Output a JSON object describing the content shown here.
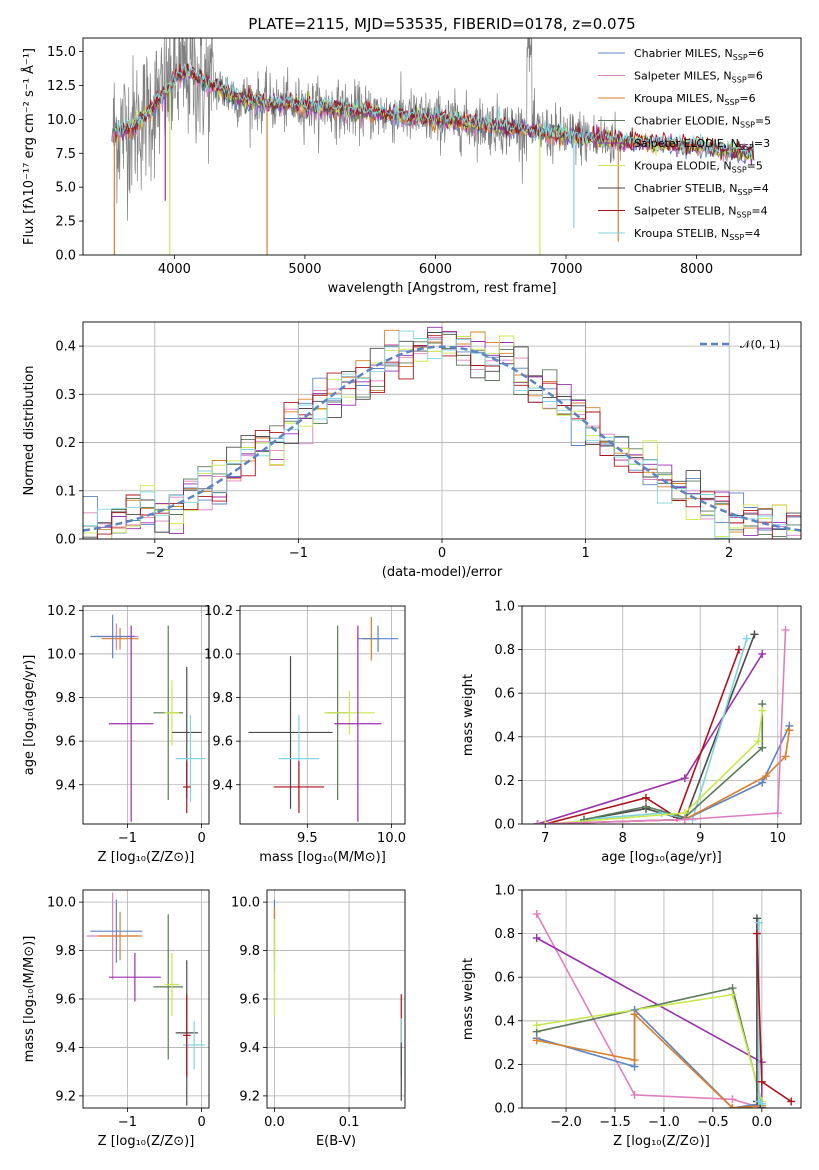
{
  "chart_data": [
    {
      "id": "spectrum",
      "type": "line",
      "title": "PLATE=2115, MJD=53535, FIBERID=0178, z=0.075",
      "xlabel": "wavelength [Angstrom, rest frame]",
      "ylabel": "Flux [fλ10⁻¹⁷ erg cm⁻² s⁻¹ Å⁻¹]",
      "xlim": [
        3300,
        8800
      ],
      "ylim": [
        0,
        16
      ],
      "xticks": [
        4000,
        5000,
        6000,
        7000,
        8000
      ],
      "xtick_labels": [
        "4000",
        "5000",
        "6000",
        "7000",
        "8000"
      ],
      "yticks": [
        0,
        2.5,
        5,
        7.5,
        10,
        12.5,
        15
      ],
      "ytick_labels": [
        "0.0",
        "2.5",
        "5.0",
        "7.5",
        "10.0",
        "12.5",
        "15.0"
      ],
      "grid": false,
      "legend_position": "top-right",
      "legend": [
        {
          "label": "Chabrier MILES, N",
          "sub": "SSP",
          "suffix": "=6",
          "color": "#5b84c4"
        },
        {
          "label": "Salpeter MILES, N",
          "sub": "SSP",
          "suffix": "=6",
          "color": "#e07fbf"
        },
        {
          "label": "Kroupa MILES, N",
          "sub": "SSP",
          "suffix": "=6",
          "color": "#d9802b"
        },
        {
          "label": "Chabrier ELODIE, N",
          "sub": "SSP",
          "suffix": "=5",
          "color": "#5a7a5a"
        },
        {
          "label": "Salpeter ELODIE, N",
          "sub": "SSP",
          "suffix": "=3",
          "color": "#9b2fae"
        },
        {
          "label": "Kroupa ELODIE, N",
          "sub": "SSP",
          "suffix": "=5",
          "color": "#c9e84e"
        },
        {
          "label": "Chabrier STELIB, N",
          "sub": "SSP",
          "suffix": "=4",
          "color": "#4a4a4a"
        },
        {
          "label": "Salpeter STELIB, N",
          "sub": "SSP",
          "suffix": "=4",
          "color": "#b0101a"
        },
        {
          "label": "Kroupa STELIB, N",
          "sub": "SSP",
          "suffix": "=4",
          "color": "#7fd6e0"
        }
      ],
      "data_color": "#808080",
      "spectrum_profile": {
        "x": [
          3500,
          3700,
          3900,
          4000,
          4100,
          4300,
          4500,
          4700,
          5000,
          5500,
          6000,
          6500,
          7000,
          7500,
          8000,
          8400
        ],
        "y": [
          9.0,
          9.5,
          11.5,
          13.0,
          13.5,
          12.5,
          11.5,
          11.2,
          11.0,
          10.5,
          10.0,
          9.5,
          8.8,
          8.3,
          8.0,
          7.5
        ]
      }
    },
    {
      "id": "residuals",
      "type": "step",
      "xlabel": "(data-model)/error",
      "ylabel": "Normed distribution",
      "xlim": [
        -2.5,
        2.5
      ],
      "ylim": [
        0,
        0.45
      ],
      "xticks": [
        -2,
        -1,
        0,
        1,
        2
      ],
      "xtick_labels": [
        "−2",
        "−1",
        "0",
        "1",
        "2"
      ],
      "yticks": [
        0,
        0.1,
        0.2,
        0.3,
        0.4
      ],
      "ytick_labels": [
        "0.0",
        "0.1",
        "0.2",
        "0.3",
        "0.4"
      ],
      "grid": true,
      "legend_position": "top-right",
      "legend": [
        {
          "label": "𝒩(0, 1)",
          "color": "#5b84c4",
          "dashed": true
        }
      ],
      "bin_width": 0.1
    },
    {
      "id": "age-vs-z",
      "type": "errorbar",
      "xlabel": "Z [log₁₀(Z/Z⊙)]",
      "ylabel": "age  [log₁₀(age/yr)]",
      "xlim": [
        -1.6,
        0.1
      ],
      "ylim": [
        9.22,
        10.22
      ],
      "xticks": [
        -1,
        0
      ],
      "xtick_labels": [
        "−1",
        "0"
      ],
      "yticks": [
        9.4,
        9.6,
        9.8,
        10.0,
        10.2
      ],
      "ytick_labels": [
        "9.4",
        "9.6",
        "9.8",
        "10.0",
        "10.2"
      ],
      "grid": true,
      "points": [
        {
          "x": -1.15,
          "xerr": 0.3,
          "y": 10.08,
          "yerr": 0.06,
          "color": "#e07fbf"
        },
        {
          "x": -1.1,
          "xerr": 0.25,
          "y": 10.07,
          "yerr": 0.05,
          "color": "#d9802b"
        },
        {
          "x": -1.2,
          "xerr": 0.3,
          "y": 10.08,
          "yerr": 0.1,
          "color": "#5b84c4"
        },
        {
          "x": -0.95,
          "xerr": 0.3,
          "y": 9.68,
          "yerr": 0.45,
          "color": "#9b2fae"
        },
        {
          "x": -0.45,
          "xerr": 0.2,
          "y": 9.73,
          "yerr": 0.4,
          "color": "#5a7a5a"
        },
        {
          "x": -0.4,
          "xerr": 0.1,
          "y": 9.73,
          "yerr": 0.15,
          "color": "#c9e84e"
        },
        {
          "x": -0.2,
          "xerr": 0.2,
          "y": 9.64,
          "yerr": 0.3,
          "color": "#4a4a4a"
        },
        {
          "x": -0.15,
          "xerr": 0.2,
          "y": 9.52,
          "yerr": 0.2,
          "color": "#7fd6e0"
        },
        {
          "x": -0.2,
          "xerr": 0.05,
          "y": 9.39,
          "yerr": 0.12,
          "color": "#b0101a"
        }
      ]
    },
    {
      "id": "age-vs-mass",
      "type": "errorbar",
      "xlabel": "mass [log₁₀(M/M⊙)]",
      "ylabel": "",
      "xlim": [
        9.1,
        10.08
      ],
      "ylim": [
        9.22,
        10.22
      ],
      "xticks": [
        9.5,
        10.0
      ],
      "xtick_labels": [
        "9.5",
        "10.0"
      ],
      "yticks": [
        9.4,
        9.6,
        9.8,
        10.0,
        10.2
      ],
      "ytick_labels": [
        "9.4",
        "9.6",
        "9.8",
        "10.0",
        "10.2"
      ],
      "grid": true,
      "points": [
        {
          "x": 9.88,
          "xerr": 0.05,
          "y": 10.07,
          "yerr": 0.1,
          "color": "#d9802b"
        },
        {
          "x": 9.92,
          "xerr": 0.12,
          "y": 10.07,
          "yerr": 0.06,
          "color": "#5b84c4"
        },
        {
          "x": 9.68,
          "xerr": 0.06,
          "y": 9.73,
          "yerr": 0.4,
          "color": "#5a7a5a"
        },
        {
          "x": 9.75,
          "xerr": 0.15,
          "y": 9.73,
          "yerr": 0.1,
          "color": "#c9e84e"
        },
        {
          "x": 9.8,
          "xerr": 0.14,
          "y": 9.68,
          "yerr": 0.45,
          "color": "#9b2fae"
        },
        {
          "x": 9.4,
          "xerr": 0.25,
          "y": 9.64,
          "yerr": 0.35,
          "color": "#4a4a4a"
        },
        {
          "x": 9.45,
          "xerr": 0.12,
          "y": 9.52,
          "yerr": 0.2,
          "color": "#7fd6e0"
        },
        {
          "x": 9.45,
          "xerr": 0.15,
          "y": 9.39,
          "yerr": 0.12,
          "color": "#b0101a"
        }
      ]
    },
    {
      "id": "weight-vs-age",
      "type": "line",
      "xlabel": "age  [log₁₀(age/yr)]",
      "ylabel": "mass weight",
      "xlim": [
        6.7,
        10.3
      ],
      "ylim": [
        0,
        1.0
      ],
      "xticks": [
        7,
        8,
        9,
        10
      ],
      "xtick_labels": [
        "7",
        "8",
        "9",
        "10"
      ],
      "yticks": [
        0,
        0.2,
        0.4,
        0.6,
        0.8,
        1.0
      ],
      "ytick_labels": [
        "0.0",
        "0.2",
        "0.4",
        "0.6",
        "0.8",
        "1.0"
      ],
      "grid": true,
      "series": [
        {
          "color": "#9b2fae",
          "x": [
            6.9,
            8.8,
            9.8
          ],
          "y": [
            0.0,
            0.21,
            0.78
          ]
        },
        {
          "color": "#b0101a",
          "x": [
            7.0,
            8.3,
            8.7,
            9.5
          ],
          "y": [
            0.0,
            0.12,
            0.03,
            0.8
          ]
        },
        {
          "color": "#4a4a4a",
          "x": [
            7.5,
            8.3,
            8.8,
            9.7
          ],
          "y": [
            0.02,
            0.07,
            0.02,
            0.87
          ]
        },
        {
          "color": "#7fd6e0",
          "x": [
            7.5,
            8.5,
            8.9,
            9.6
          ],
          "y": [
            0.02,
            0.05,
            0.02,
            0.85
          ]
        },
        {
          "color": "#5a7a5a",
          "x": [
            7.5,
            8.3,
            8.8,
            9.8,
            9.8
          ],
          "y": [
            0.02,
            0.08,
            0.03,
            0.35,
            0.55
          ]
        },
        {
          "color": "#c9e84e",
          "x": [
            7.0,
            8.8,
            9.75,
            9.8
          ],
          "y": [
            0.0,
            0.05,
            0.38,
            0.52
          ]
        },
        {
          "color": "#5b84c4",
          "x": [
            6.9,
            8.8,
            9.8,
            10.15
          ],
          "y": [
            0.0,
            0.02,
            0.19,
            0.45
          ]
        },
        {
          "color": "#d9802b",
          "x": [
            6.9,
            8.8,
            9.85,
            10.1,
            10.15
          ],
          "y": [
            0.0,
            0.02,
            0.22,
            0.31,
            0.43
          ]
        },
        {
          "color": "#e07fbf",
          "x": [
            6.9,
            8.8,
            10.0,
            10.1
          ],
          "y": [
            0.0,
            0.02,
            0.05,
            0.89
          ]
        }
      ]
    },
    {
      "id": "mass-vs-z",
      "type": "errorbar",
      "xlabel": "Z [log₁₀(Z/Z⊙)]",
      "ylabel": "mass [log₁₀(M/M⊙)]",
      "xlim": [
        -1.6,
        0.1
      ],
      "ylim": [
        9.15,
        10.05
      ],
      "xticks": [
        -1,
        0
      ],
      "xtick_labels": [
        "−1",
        "0"
      ],
      "yticks": [
        9.2,
        9.4,
        9.6,
        9.8,
        10.0
      ],
      "ytick_labels": [
        "9.2",
        "9.4",
        "9.6",
        "9.8",
        "10.0"
      ],
      "grid": true,
      "points": [
        {
          "x": -1.2,
          "xerr": 0.35,
          "y": 9.86,
          "yerr": 0.18,
          "color": "#e07fbf"
        },
        {
          "x": -1.15,
          "xerr": 0.35,
          "y": 9.88,
          "yerr": 0.13,
          "color": "#5b84c4"
        },
        {
          "x": -1.1,
          "xerr": 0.3,
          "y": 9.86,
          "yerr": 0.1,
          "color": "#d9802b"
        },
        {
          "x": -0.9,
          "xerr": 0.35,
          "y": 9.69,
          "yerr": 0.1,
          "color": "#9b2fae"
        },
        {
          "x": -0.45,
          "xerr": 0.2,
          "y": 9.65,
          "yerr": 0.3,
          "color": "#5a7a5a"
        },
        {
          "x": -0.4,
          "xerr": 0.1,
          "y": 9.66,
          "yerr": 0.13,
          "color": "#c9e84e"
        },
        {
          "x": -0.2,
          "xerr": 0.15,
          "y": 9.46,
          "yerr": 0.3,
          "color": "#4a4a4a"
        },
        {
          "x": -0.1,
          "xerr": 0.15,
          "y": 9.41,
          "yerr": 0.1,
          "color": "#7fd6e0"
        },
        {
          "x": -0.2,
          "xerr": 0.05,
          "y": 9.45,
          "yerr": 0.17,
          "color": "#b0101a"
        }
      ]
    },
    {
      "id": "mass-vs-ebv",
      "type": "errorbar",
      "xlabel": "E(B-V)",
      "ylabel": "",
      "xlim": [
        -0.01,
        0.175
      ],
      "ylim": [
        9.15,
        10.05
      ],
      "xticks": [
        0.0,
        0.1
      ],
      "xtick_labels": [
        "0.0",
        "0.1"
      ],
      "yticks": [
        9.2,
        9.4,
        9.6,
        9.8,
        10.0
      ],
      "ytick_labels": [
        "9.2",
        "9.4",
        "9.6",
        "9.8",
        "10.0"
      ],
      "grid": true,
      "points": [
        {
          "x": 0.0,
          "xerr": 0.0,
          "y": 9.86,
          "yerr": 0.15,
          "color": "#5b84c4"
        },
        {
          "x": 0.0,
          "xerr": 0.0,
          "y": 9.88,
          "yerr": 0.1,
          "color": "#d9802b"
        },
        {
          "x": 0.0,
          "xerr": 0.0,
          "y": 9.73,
          "yerr": 0.2,
          "color": "#c9e84e"
        },
        {
          "x": 0.17,
          "xerr": 0.0,
          "y": 9.45,
          "yerr": 0.17,
          "color": "#b0101a"
        },
        {
          "x": 0.17,
          "xerr": 0.0,
          "y": 9.4,
          "yerr": 0.12,
          "color": "#7fd6e0"
        },
        {
          "x": 0.17,
          "xerr": 0.0,
          "y": 9.3,
          "yerr": 0.12,
          "color": "#4a4a4a"
        }
      ]
    },
    {
      "id": "weight-vs-z",
      "type": "line",
      "xlabel": "Z [log₁₀(Z/Z⊙)]",
      "ylabel": "mass weight",
      "xlim": [
        -2.45,
        0.4
      ],
      "ylim": [
        0,
        1.0
      ],
      "xticks": [
        -2.0,
        -1.5,
        -1.0,
        -0.5,
        0.0
      ],
      "xtick_labels": [
        "−2.0",
        "−1.5",
        "−1.0",
        "−0.5",
        "0.0"
      ],
      "yticks": [
        0,
        0.2,
        0.4,
        0.6,
        0.8,
        1.0
      ],
      "ytick_labels": [
        "0.0",
        "0.2",
        "0.4",
        "0.6",
        "0.8",
        "1.0"
      ],
      "grid": true,
      "series": [
        {
          "color": "#e07fbf",
          "x": [
            -2.3,
            -1.3,
            -0.3,
            0.0
          ],
          "y": [
            0.89,
            0.06,
            0.04,
            0.0
          ]
        },
        {
          "color": "#9b2fae",
          "x": [
            -2.3,
            0.0,
            0.0
          ],
          "y": [
            0.78,
            0.21,
            0.0
          ]
        },
        {
          "color": "#5a7a5a",
          "x": [
            -2.3,
            -0.3,
            0.0,
            0.0
          ],
          "y": [
            0.35,
            0.55,
            0.02,
            0.0
          ]
        },
        {
          "color": "#c9e84e",
          "x": [
            -2.3,
            -0.3,
            0.0
          ],
          "y": [
            0.38,
            0.52,
            0.03
          ]
        },
        {
          "color": "#5b84c4",
          "x": [
            -2.3,
            -1.3,
            -1.3,
            -0.3,
            0.0
          ],
          "y": [
            0.32,
            0.19,
            0.45,
            0.0,
            0.02
          ]
        },
        {
          "color": "#d9802b",
          "x": [
            -2.3,
            -1.3,
            -1.3,
            -0.3,
            0.0
          ],
          "y": [
            0.31,
            0.22,
            0.43,
            0.0,
            0.01
          ]
        },
        {
          "color": "#4a4a4a",
          "x": [
            -0.05,
            -0.05,
            0.0
          ],
          "y": [
            0.87,
            0.03,
            0.0
          ]
        },
        {
          "color": "#7fd6e0",
          "x": [
            -0.03,
            -0.03,
            0.0
          ],
          "y": [
            0.85,
            0.03,
            0.02
          ]
        },
        {
          "color": "#b0101a",
          "x": [
            -0.05,
            0.0,
            0.3
          ],
          "y": [
            0.8,
            0.12,
            0.03
          ]
        }
      ]
    }
  ]
}
